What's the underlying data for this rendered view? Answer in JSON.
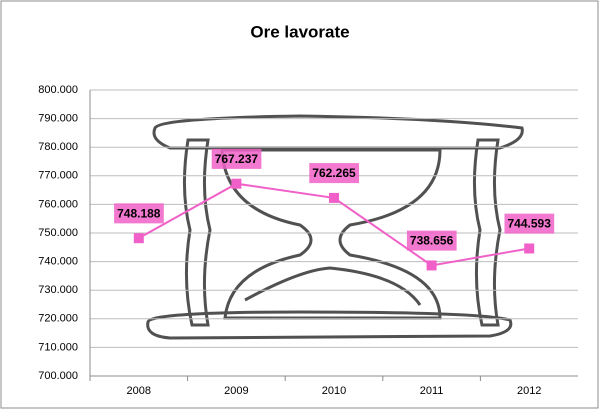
{
  "chart_data": {
    "type": "line",
    "title": "Ore lavorate",
    "categories": [
      "2008",
      "2009",
      "2010",
      "2011",
      "2012"
    ],
    "series": [
      {
        "color": "#f060c8",
        "values": [
          748188,
          767237,
          762265,
          738656,
          744593
        ],
        "value_labels": [
          "748.188",
          "767.237",
          "762.265",
          "738.656",
          "744.593"
        ]
      }
    ],
    "ylim": [
      700000,
      800000
    ],
    "yticks": [
      {
        "value": 700000,
        "label": "700.000"
      },
      {
        "value": 710000,
        "label": "710.000"
      },
      {
        "value": 720000,
        "label": "720.000"
      },
      {
        "value": 730000,
        "label": "730.000"
      },
      {
        "value": 740000,
        "label": "740.000"
      },
      {
        "value": 750000,
        "label": "750.000"
      },
      {
        "value": 760000,
        "label": "760.000"
      },
      {
        "value": 770000,
        "label": "770.000"
      },
      {
        "value": 780000,
        "label": "780.000"
      },
      {
        "value": 790000,
        "label": "790.000"
      },
      {
        "value": 800000,
        "label": "800.000"
      }
    ],
    "grid": true
  }
}
